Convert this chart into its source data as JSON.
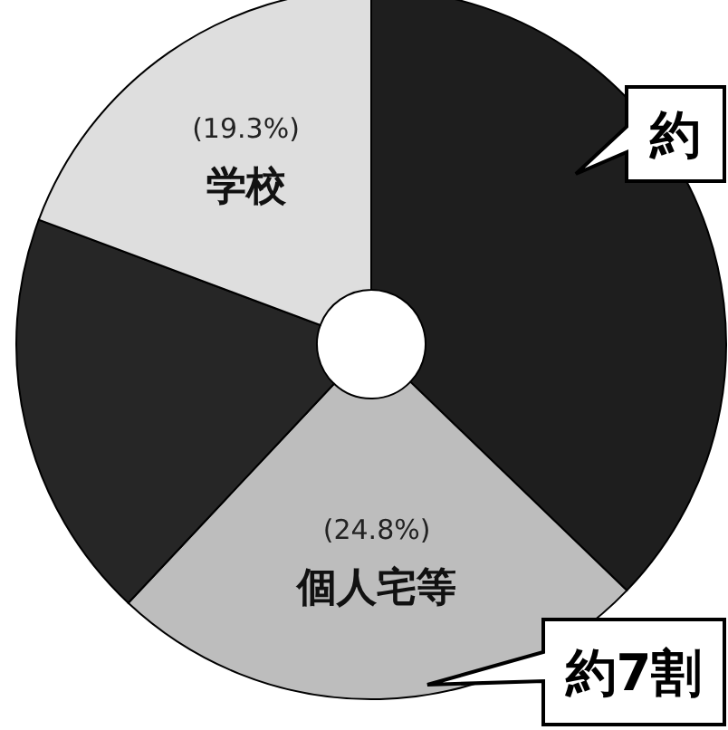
{
  "chart_data": {
    "type": "donut",
    "categories": [
      null,
      "個人宅等",
      null,
      "学校"
    ],
    "values": [
      37.2,
      24.8,
      18.7,
      19.3
    ],
    "colors": [
      "#1e1e1e",
      "#bdbdbd",
      "#262626",
      "#dedede"
    ],
    "value_labels": [
      null,
      "(24.8%)",
      null,
      "(19.3%)"
    ],
    "annotations": [
      "約",
      "約7割"
    ]
  }
}
